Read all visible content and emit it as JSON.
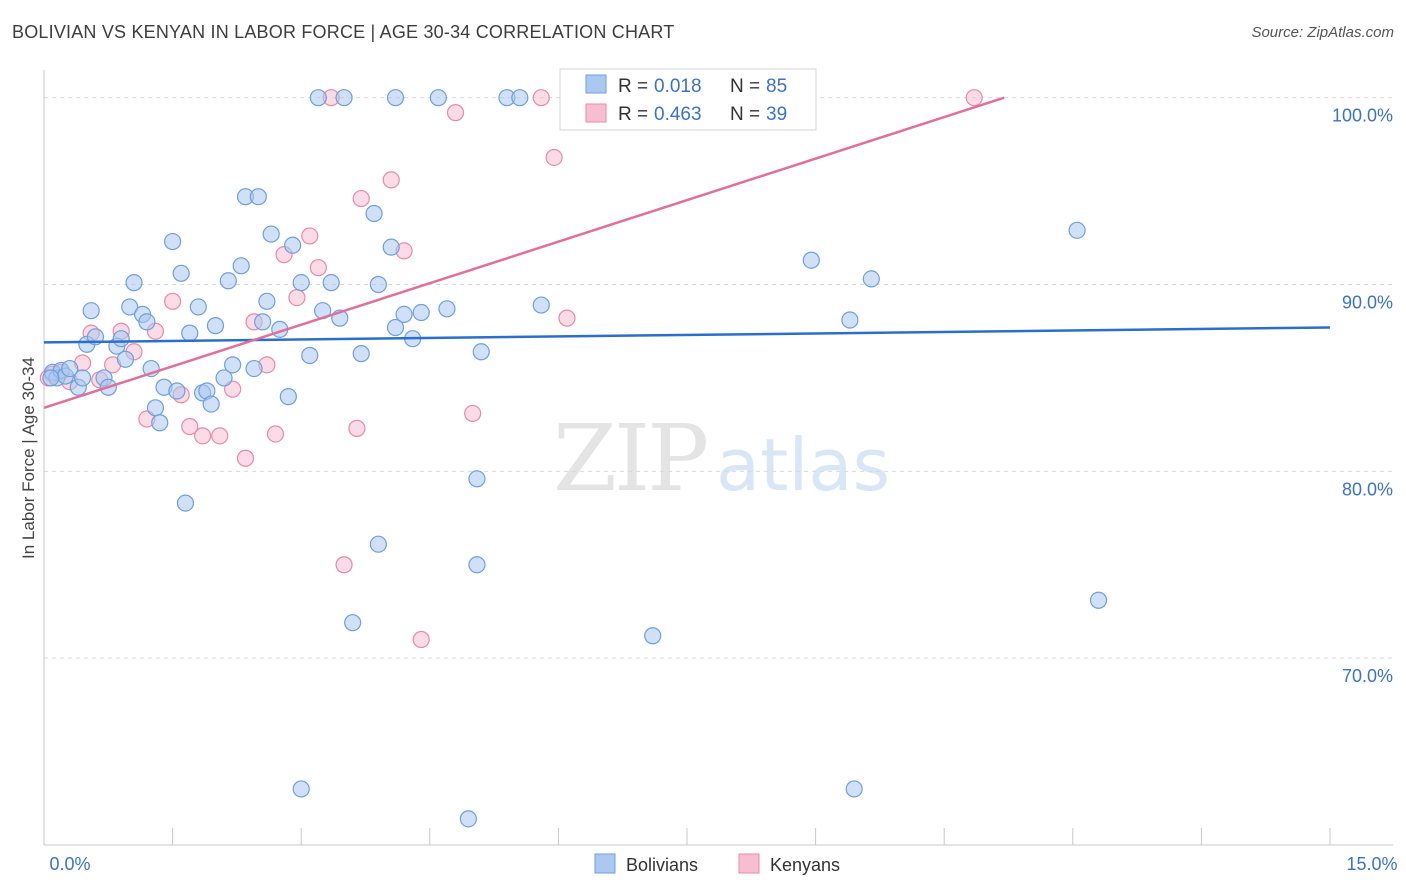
{
  "chart_data": {
    "type": "scatter",
    "title": "BOLIVIAN VS KENYAN IN LABOR FORCE | AGE 30-34 CORRELATION CHART",
    "source": "Source: ZipAtlas.com",
    "xlabel": "",
    "ylabel": "In Labor Force | Age 30-34",
    "xlim": [
      0,
      15
    ],
    "ylim": [
      60,
      101
    ],
    "x_tick_labels": [
      "0.0%",
      "15.0%"
    ],
    "y_ticks": [
      100,
      90,
      80,
      70
    ],
    "y_tick_labels": [
      "100.0%",
      "90.0%",
      "80.0%",
      "70.0%"
    ],
    "watermark": {
      "part1": "ZIP",
      "part2": "atlas"
    },
    "legend": [
      {
        "r_label": "R = ",
        "r_value": "0.018",
        "n_label": "N = ",
        "n_value": "85"
      },
      {
        "r_label": "R = ",
        "r_value": "0.463",
        "n_label": "N = ",
        "n_value": "39"
      }
    ],
    "colors": {
      "bolivians_fill": "#aac8f0",
      "bolivians_stroke": "#6f9fdc",
      "bolivians_line": "#2a6fcf",
      "kenyans_fill": "#f7bdd0",
      "kenyans_stroke": "#e88aaa",
      "kenyans_line": "#e0709a",
      "value_text": "#3b72c8",
      "grid": "#d9d9d9"
    },
    "series": [
      {
        "name": "Bolivians",
        "trend": {
          "x": [
            0,
            15
          ],
          "y": [
            86.9,
            87.7
          ]
        },
        "points": [
          [
            0.1,
            85.3
          ],
          [
            0.15,
            85.0
          ],
          [
            0.2,
            85.4
          ],
          [
            0.25,
            85.1
          ],
          [
            0.3,
            85.5
          ],
          [
            0.4,
            84.5
          ],
          [
            0.45,
            85.0
          ],
          [
            0.5,
            86.8
          ],
          [
            0.55,
            88.6
          ],
          [
            0.6,
            87.2
          ],
          [
            0.7,
            85.0
          ],
          [
            0.75,
            84.5
          ],
          [
            0.85,
            86.7
          ],
          [
            0.9,
            87.1
          ],
          [
            0.95,
            86.0
          ],
          [
            1.0,
            88.8
          ],
          [
            1.05,
            90.1
          ],
          [
            1.15,
            88.4
          ],
          [
            1.2,
            88.0
          ],
          [
            1.25,
            85.5
          ],
          [
            1.3,
            83.4
          ],
          [
            1.35,
            82.6
          ],
          [
            1.4,
            84.5
          ],
          [
            1.5,
            92.3
          ],
          [
            1.55,
            84.3
          ],
          [
            1.6,
            90.6
          ],
          [
            1.65,
            78.3
          ],
          [
            1.7,
            87.4
          ],
          [
            1.8,
            88.8
          ],
          [
            1.85,
            84.2
          ],
          [
            1.9,
            84.3
          ],
          [
            1.95,
            83.6
          ],
          [
            2.0,
            87.8
          ],
          [
            2.1,
            85.0
          ],
          [
            2.15,
            90.2
          ],
          [
            2.2,
            85.7
          ],
          [
            2.3,
            91.0
          ],
          [
            2.35,
            94.7
          ],
          [
            2.45,
            85.5
          ],
          [
            2.5,
            94.7
          ],
          [
            2.55,
            88.0
          ],
          [
            2.6,
            89.1
          ],
          [
            2.65,
            92.7
          ],
          [
            2.75,
            87.6
          ],
          [
            2.85,
            84.0
          ],
          [
            2.9,
            92.1
          ],
          [
            3.0,
            90.1
          ],
          [
            3.0,
            63.0
          ],
          [
            3.1,
            86.2
          ],
          [
            3.2,
            100.0
          ],
          [
            3.25,
            88.6
          ],
          [
            3.35,
            90.1
          ],
          [
            3.45,
            88.2
          ],
          [
            3.5,
            100.0
          ],
          [
            3.6,
            71.9
          ],
          [
            3.7,
            86.3
          ],
          [
            3.85,
            93.8
          ],
          [
            3.9,
            90.0
          ],
          [
            3.9,
            76.1
          ],
          [
            4.05,
            92.0
          ],
          [
            4.1,
            87.7
          ],
          [
            4.1,
            100.0
          ],
          [
            4.2,
            88.4
          ],
          [
            4.3,
            87.1
          ],
          [
            4.4,
            88.5
          ],
          [
            4.6,
            100.0
          ],
          [
            4.7,
            88.7
          ],
          [
            4.95,
            61.4
          ],
          [
            5.05,
            79.6
          ],
          [
            5.05,
            75.0
          ],
          [
            5.1,
            86.4
          ],
          [
            5.4,
            100.0
          ],
          [
            5.55,
            100.0
          ],
          [
            5.8,
            88.9
          ],
          [
            6.3,
            100.0
          ],
          [
            7.1,
            71.2
          ],
          [
            7.3,
            100.0
          ],
          [
            7.65,
            100.0
          ],
          [
            8.95,
            91.3
          ],
          [
            9.4,
            88.1
          ],
          [
            9.45,
            63.0
          ],
          [
            9.65,
            90.3
          ],
          [
            12.05,
            92.9
          ],
          [
            12.3,
            73.1
          ],
          [
            0.08,
            85.0
          ]
        ]
      },
      {
        "name": "Kenyans",
        "trend": {
          "x": [
            0,
            11.2
          ],
          "y": [
            83.4,
            100.0
          ]
        },
        "points": [
          [
            0.1,
            85.2
          ],
          [
            0.2,
            85.3
          ],
          [
            0.3,
            84.8
          ],
          [
            0.45,
            85.8
          ],
          [
            0.55,
            87.4
          ],
          [
            0.65,
            84.9
          ],
          [
            0.8,
            85.7
          ],
          [
            0.9,
            87.5
          ],
          [
            1.05,
            86.4
          ],
          [
            1.2,
            82.8
          ],
          [
            1.3,
            87.5
          ],
          [
            1.5,
            89.1
          ],
          [
            1.6,
            84.1
          ],
          [
            1.7,
            82.4
          ],
          [
            1.85,
            81.9
          ],
          [
            2.05,
            81.9
          ],
          [
            2.2,
            84.4
          ],
          [
            2.35,
            80.7
          ],
          [
            2.45,
            88.0
          ],
          [
            2.6,
            85.7
          ],
          [
            2.7,
            82.0
          ],
          [
            2.8,
            91.6
          ],
          [
            2.95,
            89.3
          ],
          [
            3.1,
            92.6
          ],
          [
            3.2,
            90.9
          ],
          [
            3.35,
            100.0
          ],
          [
            3.5,
            75.0
          ],
          [
            3.65,
            82.3
          ],
          [
            3.7,
            94.6
          ],
          [
            4.05,
            95.6
          ],
          [
            4.2,
            91.8
          ],
          [
            4.4,
            71.0
          ],
          [
            4.8,
            99.2
          ],
          [
            5.0,
            83.1
          ],
          [
            5.8,
            100.0
          ],
          [
            5.95,
            96.8
          ],
          [
            6.1,
            88.2
          ],
          [
            10.85,
            100.0
          ],
          [
            0.05,
            85.0
          ]
        ]
      }
    ]
  },
  "footer_legend": [
    {
      "label": "Bolivians"
    },
    {
      "label": "Kenyans"
    }
  ]
}
